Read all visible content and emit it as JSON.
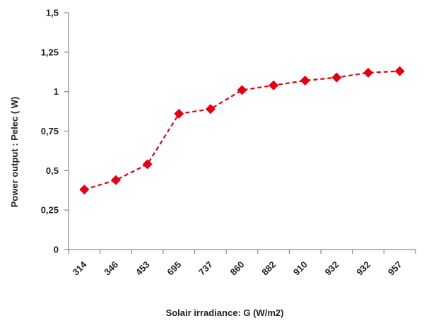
{
  "chart_data": {
    "type": "line",
    "title": "",
    "xlabel": "Solair irradiance: G  (W/m2)",
    "ylabel": "Power output  : Pelec  ( W)",
    "categories": [
      "314",
      "346",
      "453",
      "695",
      "737",
      "860",
      "882",
      "910",
      "932",
      "932",
      "957"
    ],
    "series": [
      {
        "name": "",
        "values": [
          0.38,
          0.44,
          0.54,
          0.86,
          0.89,
          1.01,
          1.04,
          1.07,
          1.09,
          1.12,
          1.13
        ]
      }
    ],
    "ylim": [
      0,
      1.5
    ],
    "yticks": [
      {
        "value": 0,
        "label": "0"
      },
      {
        "value": 0.25,
        "label": "0,25"
      },
      {
        "value": 0.5,
        "label": "0,5"
      },
      {
        "value": 0.75,
        "label": "0,75"
      },
      {
        "value": 1,
        "label": "1"
      },
      {
        "value": 1.25,
        "label": "1,25"
      },
      {
        "value": 1.5,
        "label": "1,5"
      }
    ],
    "line_style": "dashed",
    "marker": "diamond",
    "series_color": "#e3000f",
    "axis_color": "#8c8c8c",
    "grid": false,
    "legend": "none"
  }
}
